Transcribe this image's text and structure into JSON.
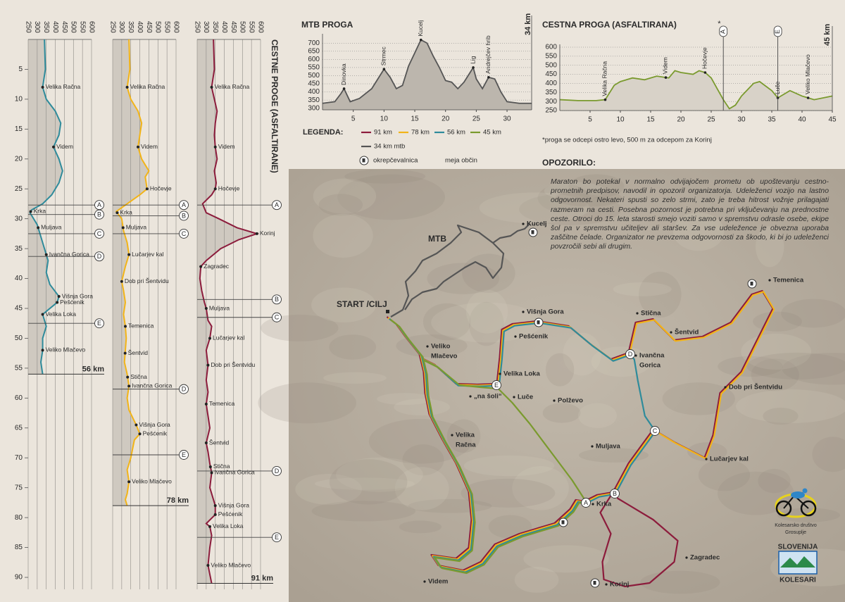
{
  "vertical_title": "CESTNE PROGE (ASFALTIRANE)",
  "profile_axis": {
    "kmlim": [
      0,
      92
    ],
    "kmticks": [
      5,
      10,
      15,
      20,
      25,
      30,
      35,
      40,
      45,
      50,
      55,
      60,
      65,
      70,
      75,
      80,
      85,
      90
    ],
    "elevlim": [
      250,
      600
    ],
    "elevticks": [
      250,
      300,
      350,
      400,
      450,
      500,
      550,
      600
    ]
  },
  "profiles": [
    {
      "name": "56 km",
      "color": "#2e8b9b",
      "km": [
        0,
        5,
        8,
        10,
        12,
        14,
        16,
        18,
        20,
        22,
        24,
        26,
        27.5,
        28.5,
        29,
        31,
        33,
        35,
        37,
        39,
        41,
        43,
        44,
        46,
        48,
        50,
        52,
        54,
        56
      ],
      "elev": [
        340,
        345,
        330,
        350,
        400,
        430,
        420,
        390,
        420,
        440,
        420,
        380,
        330,
        270,
        260,
        300,
        320,
        340,
        360,
        350,
        370,
        420,
        410,
        330,
        350,
        330,
        330,
        320,
        330
      ],
      "places": [
        {
          "label": "Velika Račna",
          "km": 8
        },
        {
          "label": "Videm",
          "km": 18
        },
        {
          "label": "Krka",
          "km": 28.8
        },
        {
          "label": "Muljava",
          "km": 31.5
        },
        {
          "label": "Ivančna Gorica",
          "km": 36
        },
        {
          "label": "Višnja Gora",
          "km": 43
        },
        {
          "label": "Pešćenik",
          "km": 44
        },
        {
          "label": "Velika Loka",
          "km": 46
        },
        {
          "label": "Veliko Mlačevo",
          "km": 52
        }
      ],
      "checkpoints": [
        {
          "label": "A",
          "km": 27.7
        },
        {
          "label": "B",
          "km": 29.3
        },
        {
          "label": "C",
          "km": 32.5
        },
        {
          "label": "D",
          "km": 36.3
        },
        {
          "label": "E",
          "km": 47.5
        }
      ]
    },
    {
      "name": "78 km",
      "color": "#f2b418",
      "km": [
        0,
        5,
        8,
        10,
        12,
        14,
        16,
        18,
        20,
        22,
        23,
        25,
        26,
        27.5,
        28.8,
        30,
        32,
        34,
        36,
        38,
        40.5,
        42,
        44,
        46,
        48,
        50,
        52,
        54,
        56,
        58,
        60,
        62,
        64.5,
        66,
        67,
        70,
        72,
        74,
        76,
        77,
        78
      ],
      "elev": [
        340,
        345,
        330,
        350,
        390,
        410,
        400,
        390,
        410,
        450,
        430,
        440,
        400,
        330,
        270,
        300,
        310,
        330,
        340,
        320,
        300,
        310,
        320,
        310,
        320,
        325,
        320,
        315,
        330,
        340,
        330,
        340,
        380,
        400,
        370,
        350,
        330,
        340,
        330,
        320,
        330
      ],
      "places": [
        {
          "label": "Velika Račna",
          "km": 8
        },
        {
          "label": "Videm",
          "km": 18
        },
        {
          "label": "Hočevje",
          "km": 25
        },
        {
          "label": "Krka",
          "km": 29
        },
        {
          "label": "Muljava",
          "km": 31.5
        },
        {
          "label": "Lučarjev kal",
          "km": 36
        },
        {
          "label": "Dob pri Šentvidu",
          "km": 40.5
        },
        {
          "label": "Temenica",
          "km": 48
        },
        {
          "label": "Šentvid",
          "km": 52.5
        },
        {
          "label": "Stična",
          "km": 56.5
        },
        {
          "label": "Ivančna Gorica",
          "km": 58
        },
        {
          "label": "Višnja Gora",
          "km": 64.5
        },
        {
          "label": "Pešćenik",
          "km": 66
        },
        {
          "label": "Veliko Mlačevo",
          "km": 74
        }
      ],
      "checkpoints": [
        {
          "label": "A",
          "km": 27.7
        },
        {
          "label": "B",
          "km": 29.5
        },
        {
          "label": "C",
          "km": 32.5
        },
        {
          "label": "D",
          "km": 58.5
        },
        {
          "label": "E",
          "km": 69.5
        }
      ]
    },
    {
      "name": "91 km",
      "color": "#8c1c3c",
      "km": [
        0,
        5,
        8,
        10,
        12,
        14,
        16,
        18,
        20,
        22,
        24,
        25,
        26,
        27.5,
        29,
        30,
        31.5,
        32.5,
        33.5,
        35,
        37,
        38,
        40,
        42,
        44,
        45,
        47,
        48,
        50,
        52,
        54.5,
        57,
        59,
        61,
        63,
        65,
        67.5,
        69,
        71,
        72.5,
        75,
        77,
        78,
        79.5,
        81,
        81.5,
        83,
        85,
        88,
        91
      ],
      "elev": [
        340,
        345,
        330,
        345,
        360,
        350,
        345,
        350,
        360,
        345,
        355,
        350,
        330,
        280,
        300,
        370,
        470,
        580,
        480,
        380,
        300,
        270,
        265,
        275,
        290,
        300,
        310,
        330,
        320,
        300,
        310,
        300,
        310,
        300,
        310,
        320,
        300,
        310,
        320,
        330,
        320,
        340,
        350,
        350,
        300,
        320,
        330,
        320,
        310,
        330
      ],
      "places": [
        {
          "label": "Velika Račna",
          "km": 8
        },
        {
          "label": "Videm",
          "km": 18
        },
        {
          "label": "Hočevje",
          "km": 25
        },
        {
          "label": "Korinj",
          "km": 32.5
        },
        {
          "label": "Zagradec",
          "km": 38
        },
        {
          "label": "Muljava",
          "km": 45
        },
        {
          "label": "Lučarjev kal",
          "km": 50
        },
        {
          "label": "Dob pri Šentvidu",
          "km": 54.5
        },
        {
          "label": "Temenica",
          "km": 61
        },
        {
          "label": "Šentvid",
          "km": 67.5
        },
        {
          "label": "Stična",
          "km": 71.5
        },
        {
          "label": "Ivančna Gorica",
          "km": 72.5
        },
        {
          "label": "Višnja Gora",
          "km": 78
        },
        {
          "label": "Pešćenik",
          "km": 79.5
        },
        {
          "label": "Velika Loka",
          "km": 81.5
        },
        {
          "label": "Veliko Mlačevo",
          "km": 88
        }
      ],
      "checkpoints": [
        {
          "label": "A",
          "km": 27.7
        },
        {
          "label": "B",
          "km": 43.5
        },
        {
          "label": "C",
          "km": 46.5
        },
        {
          "label": "D",
          "km": 72.2
        },
        {
          "label": "E",
          "km": 83.3
        }
      ]
    }
  ],
  "mtb": {
    "title": "MTB PROGA",
    "length_label": "34 km",
    "color": "#555555",
    "fill": "#bcb6ad",
    "xlim": [
      0,
      34
    ],
    "xticks": [
      5,
      10,
      15,
      20,
      25,
      30
    ],
    "ylim": [
      290,
      740
    ],
    "yticks": [
      300,
      350,
      400,
      450,
      500,
      550,
      600,
      650,
      700
    ],
    "km": [
      0,
      2,
      3,
      3.5,
      4.5,
      6,
      8,
      9.5,
      10,
      11,
      12,
      13,
      14,
      15,
      16,
      17,
      18,
      19,
      20,
      21,
      22,
      23,
      24,
      24.5,
      25,
      26,
      27,
      28,
      29,
      30,
      32,
      34
    ],
    "elev": [
      330,
      340,
      390,
      420,
      340,
      360,
      420,
      510,
      540,
      490,
      420,
      440,
      560,
      640,
      720,
      700,
      620,
      550,
      470,
      460,
      420,
      460,
      520,
      550,
      480,
      420,
      490,
      480,
      400,
      340,
      330,
      330
    ],
    "labels": [
      {
        "label": "Dinovka",
        "km": 3.5
      },
      {
        "label": "Strmec",
        "km": 10
      },
      {
        "label": "Kucelj",
        "km": 16
      },
      {
        "label": "Lig",
        "km": 24.5
      },
      {
        "label": "Andrejčev hrib",
        "km": 27
      }
    ],
    "checkpoints": []
  },
  "road": {
    "title": "CESTNA PROGA (ASFALTIRANA)",
    "length_label": "45 km",
    "color": "#7a9a2e",
    "fill": "#d8d2c8",
    "xlim": [
      0,
      45
    ],
    "xticks": [
      5,
      10,
      15,
      20,
      25,
      30,
      35,
      40,
      45
    ],
    "ylim": [
      250,
      600
    ],
    "yticks": [
      250,
      300,
      350,
      400,
      450,
      500,
      550,
      600
    ],
    "km": [
      0,
      3,
      6,
      7.5,
      9,
      10,
      12,
      14,
      16,
      18,
      19,
      20,
      22,
      23,
      24,
      25,
      26,
      27,
      28,
      29,
      30,
      32,
      33,
      35,
      36,
      37,
      38,
      40,
      42,
      45
    ],
    "elev": [
      310,
      305,
      305,
      310,
      390,
      410,
      430,
      420,
      440,
      430,
      470,
      460,
      450,
      470,
      460,
      430,
      370,
      310,
      260,
      280,
      330,
      400,
      410,
      360,
      320,
      340,
      360,
      330,
      310,
      330
    ],
    "labels": [
      {
        "label": "Velika Račna",
        "km": 7.5
      },
      {
        "label": "Videm",
        "km": 17.5
      },
      {
        "label": "Hočevje",
        "km": 24
      },
      {
        "label": "Luče",
        "km": 36
      },
      {
        "label": "Veliko Mlačevo",
        "km": 41
      }
    ],
    "checkpoints": [
      {
        "label": "A",
        "km": 27,
        "mark": "*"
      },
      {
        "label": "E",
        "km": 36
      }
    ]
  },
  "legend": {
    "title": "LEGENDA:",
    "items": [
      {
        "label": "91 km",
        "color": "#8c1c3c"
      },
      {
        "label": "78 km",
        "color": "#f2b418"
      },
      {
        "label": "56 km",
        "color": "#2e8b9b"
      },
      {
        "label": "45 km",
        "color": "#7a9a2e"
      },
      {
        "label": "34 km mtb",
        "color": "#555555"
      }
    ],
    "refreshment": "okrepčevalnica",
    "border": "meja občin"
  },
  "note": "*proga se odcepi ostro levo, 500 m za odcepom za Korinj",
  "warning": {
    "title": "OPOZORILO:",
    "text": "Maraton bo potekal v normalno odvijajočem prometu ob upoštevanju cestno-prometnih predpisov, navodil in opozoril organizatorja. Udeleženci vozijo na lastno odgovornost. Nekateri spusti so zelo strmi, zato je treba hitrost vožnje prilagajati razmeram na cesti. Posebna pozornost je potrebna pri vključevanju na prednostne ceste. Otroci do 15. leta starosti smejo voziti samo v spremstvu odrasle osebe, ekipe šol pa v spremstvu učiteljev ali staršev. Za vse udeležence je obvezna uporaba zaščitne čelade. Organizator ne prevzema odgovornosti za škodo, ki bi jo udeleženci povzročili sebi ali drugim."
  },
  "map": {
    "labels": [
      [
        "START /CILJ"
      ],
      [
        "MTB"
      ],
      [
        "Kucelj"
      ],
      [
        "Temenica"
      ],
      [
        "Višnja Gora"
      ],
      [
        "Pešćenik"
      ],
      [
        "Stična"
      ],
      [
        "Šentvid"
      ],
      [
        "Ivančna",
        "Gorica"
      ],
      [
        "Veliko",
        "Mlačevo"
      ],
      [
        "Velika Loka"
      ],
      [
        "„na šoli“"
      ],
      [
        "Luče"
      ],
      [
        "Polževo"
      ],
      [
        "Dob pri Šentvidu"
      ],
      [
        "Velika",
        "Račna"
      ],
      [
        "Muljava"
      ],
      [
        "Lučarjev kal"
      ],
      [
        "Krka"
      ],
      [
        "Zagradec"
      ],
      [
        "Korinj"
      ],
      [
        "Videm"
      ]
    ],
    "checkpoints": [
      "A",
      "B",
      "C",
      "D",
      "E"
    ]
  },
  "logo": {
    "club": [
      "Kolesarsko društvo",
      "Grosuplje"
    ],
    "badge_top": "SLOVENIJA",
    "badge_bottom": "KOLESARI"
  }
}
